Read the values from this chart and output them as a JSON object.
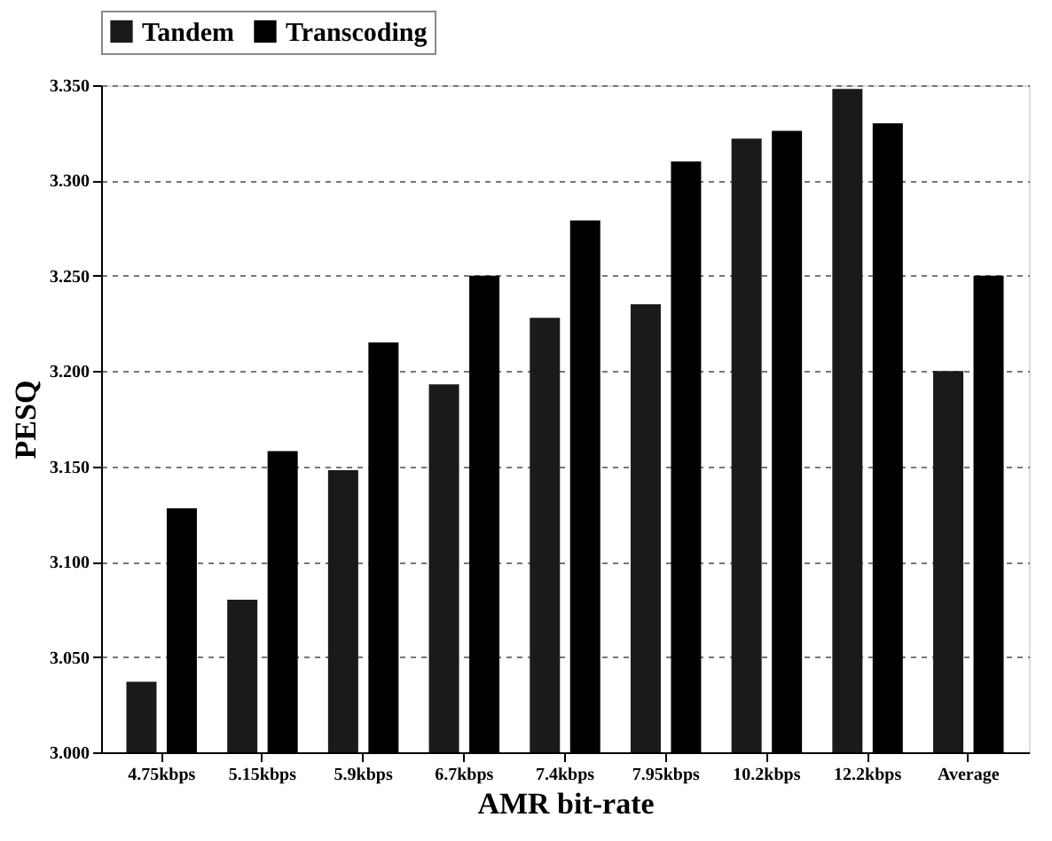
{
  "chart_data": {
    "type": "bar",
    "xlabel": "AMR bit-rate",
    "ylabel": "PESQ",
    "categories": [
      "4.75kbps",
      "5.15kbps",
      "5.9kbps",
      "6.7kbps",
      "7.4kbps",
      "7.95kbps",
      "10.2kbps",
      "12.2kbps",
      "Average"
    ],
    "series": [
      {
        "name": "Tandem",
        "color": "#1a1a1a",
        "values": [
          3.037,
          3.08,
          3.148,
          3.193,
          3.228,
          3.235,
          3.322,
          3.348,
          3.2
        ]
      },
      {
        "name": "Transcoding",
        "color": "#000000",
        "values": [
          3.128,
          3.158,
          3.215,
          3.25,
          3.279,
          3.31,
          3.326,
          3.33,
          3.25
        ]
      }
    ],
    "ylim": [
      3.0,
      3.35
    ],
    "yticks": [
      {
        "value": 3.0,
        "label": "3.000"
      },
      {
        "value": 3.05,
        "label": "3.050"
      },
      {
        "value": 3.1,
        "label": "3.100"
      },
      {
        "value": 3.15,
        "label": "3.150"
      },
      {
        "value": 3.2,
        "label": "3.200"
      },
      {
        "value": 3.25,
        "label": "3.250"
      },
      {
        "value": 3.3,
        "label": "3.300"
      },
      {
        "value": 3.35,
        "label": "3.350"
      }
    ],
    "grid": "y",
    "legend": "top"
  }
}
